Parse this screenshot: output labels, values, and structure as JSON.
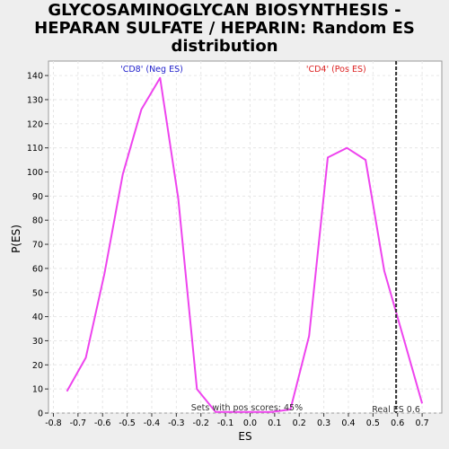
{
  "chart_data": {
    "type": "line",
    "title_lines": [
      "GLYCOSAMINOGLYCAN BIOSYNTHESIS -",
      "HEPARAN SULFATE / HEPARIN: Random ES",
      "distribution"
    ],
    "xlabel": "ES",
    "ylabel": "P(ES)",
    "xlim": [
      -0.82,
      0.78
    ],
    "ylim": [
      0,
      146
    ],
    "x_ticks": [
      -0.8,
      -0.7,
      -0.6,
      -0.5,
      -0.4,
      -0.3,
      -0.2,
      -0.1,
      0.0,
      0.1,
      0.2,
      0.3,
      0.4,
      0.5,
      0.6,
      0.7
    ],
    "x_tick_labels": [
      "-0.8",
      "-0.7",
      "-0.6",
      "-0.5",
      "-0.4",
      "-0.3",
      "-0.2",
      "-0.1",
      "0.0",
      "0.1",
      "0.2",
      "0.3",
      "0.4",
      "0.5",
      "0.6",
      "0.7"
    ],
    "y_ticks": [
      0,
      10,
      20,
      30,
      40,
      50,
      60,
      70,
      80,
      90,
      100,
      110,
      120,
      130,
      140
    ],
    "grid": true,
    "series": [
      {
        "color": "#ee44ee",
        "x": [
          -0.745,
          -0.668,
          -0.592,
          -0.518,
          -0.442,
          -0.366,
          -0.292,
          -0.216,
          -0.14,
          -0.064,
          0.012,
          0.088,
          0.164,
          0.24,
          0.316,
          0.394,
          0.47,
          0.546,
          0.622,
          0.7
        ],
        "y": [
          9,
          23,
          58,
          99,
          126,
          139,
          89,
          10,
          0.5,
          0.5,
          0.5,
          0.5,
          1.5,
          32,
          106,
          110,
          105,
          59,
          32,
          4
        ]
      }
    ],
    "vline": {
      "x": 0.594,
      "color": "#333333",
      "label": "Real ES 0.6"
    },
    "annotations": {
      "neg": {
        "text": "'CD8' (Neg ES)",
        "color": "#2222cc",
        "x": -0.4
      },
      "pos": {
        "text": "'CD4' (Pos ES)",
        "color": "#dd2222",
        "x": 0.35
      },
      "sets": {
        "text": "Sets with pos scores: 45%",
        "x": -0.24
      }
    }
  }
}
